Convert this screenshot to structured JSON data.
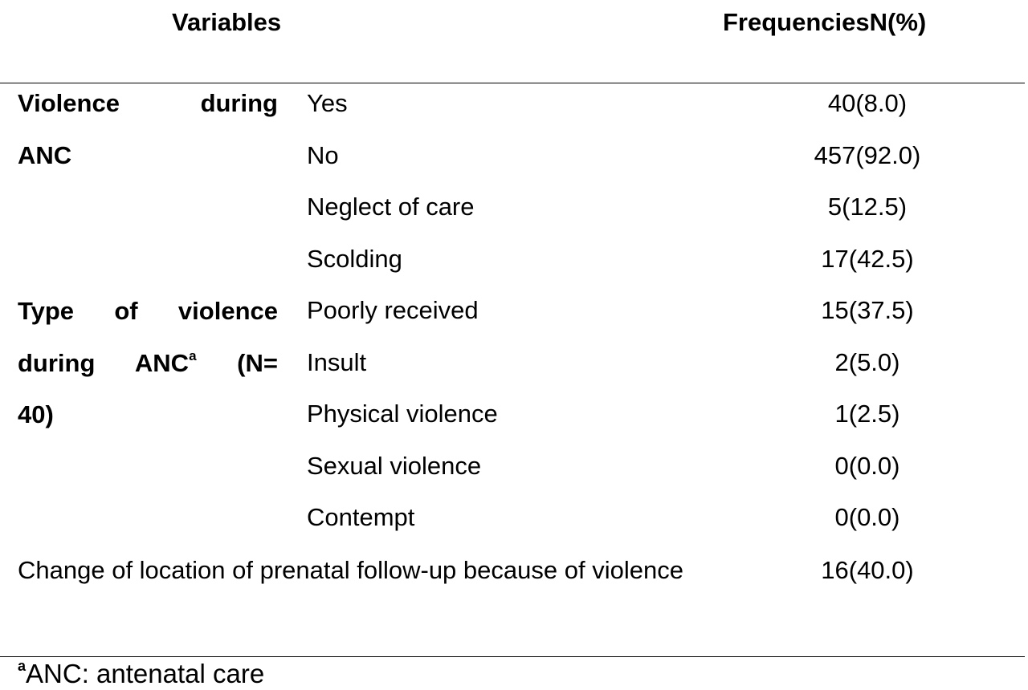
{
  "header": {
    "variables": "Variables",
    "frequencies": "FrequenciesN(%)"
  },
  "group_violence": {
    "line1": "Violence during",
    "line2": "ANC"
  },
  "group_type": {
    "line1": "Type of violence",
    "line2_a": "during ANC",
    "line2_sup": "a",
    "line2_b": " (N=",
    "line3": "40)"
  },
  "rows": [
    {
      "category": "Yes",
      "value": "40(8.0)"
    },
    {
      "category": "No",
      "value": "457(92.0)"
    },
    {
      "category": "Neglect of care",
      "value": "5(12.5)"
    },
    {
      "category": "Scolding",
      "value": "17(42.5)"
    },
    {
      "category": "Poorly received",
      "value": "15(37.5)"
    },
    {
      "category": "Insult",
      "value": "2(5.0)"
    },
    {
      "category": "Physical violence",
      "value": "1(2.5)"
    },
    {
      "category": "Sexual violence",
      "value": "0(0.0)"
    },
    {
      "category": "Contempt",
      "value": "0(0.0)"
    }
  ],
  "change": {
    "label": "Change of location of prenatal follow-up because of violence",
    "value": "16(40.0)"
  },
  "footnote": {
    "sup": "a",
    "text": "ANC: antenatal care"
  }
}
